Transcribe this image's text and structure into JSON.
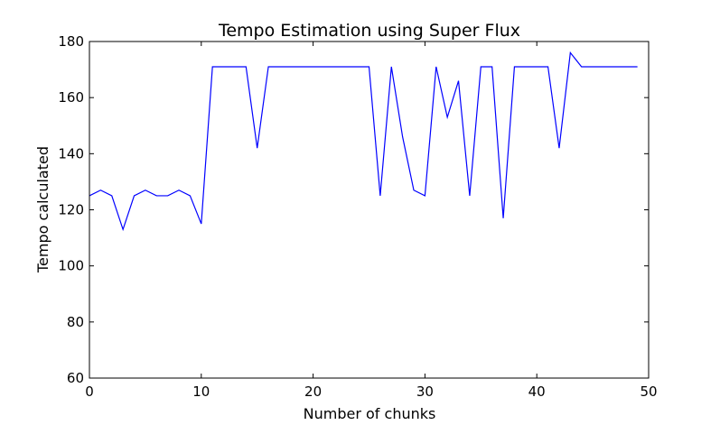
{
  "chart_data": {
    "type": "line",
    "title": "Tempo Estimation using Super Flux",
    "xlabel": "Number of chunks",
    "ylabel": "Tempo calculated",
    "xlim": [
      0,
      50
    ],
    "ylim": [
      60,
      180
    ],
    "xticks": [
      0,
      10,
      20,
      30,
      40,
      50
    ],
    "yticks": [
      60,
      80,
      100,
      120,
      140,
      160,
      180
    ],
    "grid": false,
    "legend": "none",
    "series": [
      {
        "color": "#0000ff",
        "x": [
          0,
          1,
          2,
          3,
          4,
          5,
          6,
          7,
          8,
          9,
          10,
          11,
          12,
          13,
          14,
          15,
          16,
          17,
          18,
          19,
          20,
          21,
          22,
          23,
          24,
          25,
          26,
          27,
          28,
          29,
          30,
          31,
          32,
          33,
          34,
          35,
          36,
          37,
          38,
          39,
          40,
          41,
          42,
          43,
          44,
          45,
          46,
          47,
          48,
          49
        ],
        "y": [
          125,
          127,
          125,
          113,
          125,
          127,
          125,
          125,
          127,
          125,
          115,
          171,
          171,
          171,
          171,
          142,
          171,
          171,
          171,
          171,
          171,
          171,
          171,
          171,
          171,
          171,
          125,
          171,
          146,
          127,
          125,
          171,
          153,
          166,
          125,
          171,
          171,
          117,
          171,
          171,
          171,
          171,
          142,
          176,
          171,
          171,
          171,
          171,
          171,
          171
        ]
      }
    ]
  }
}
